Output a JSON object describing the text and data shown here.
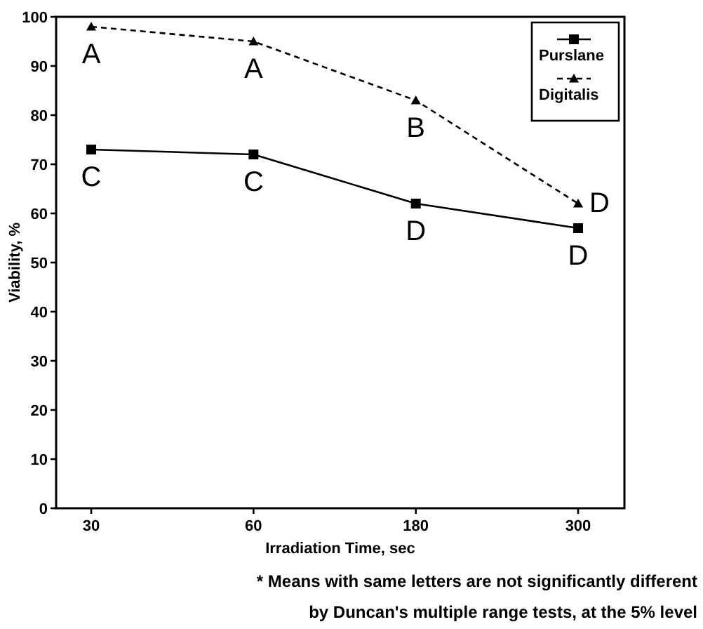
{
  "chart_data": {
    "type": "line",
    "xlabel": "Irradiation Time, sec",
    "ylabel": "Viability, %",
    "categories": [
      "30",
      "60",
      "180",
      "300"
    ],
    "series": [
      {
        "name": "Purslane",
        "color": "#000000",
        "values": [
          73,
          72,
          62,
          57
        ],
        "marker": "square",
        "line_style": "solid"
      },
      {
        "name": "Digitalis",
        "color": "#000000",
        "values": [
          98,
          95,
          83,
          62
        ],
        "marker": "triangle",
        "line_style": "dashed"
      }
    ],
    "ylim": [
      0,
      100
    ],
    "yticks": [
      0,
      10,
      20,
      30,
      40,
      50,
      60,
      70,
      80,
      90,
      100
    ],
    "grid": false,
    "legend": "top right",
    "annotations": [
      {
        "text": "A",
        "x": "30",
        "y": 98
      },
      {
        "text": "A",
        "x": "60",
        "y": 95
      },
      {
        "text": "B",
        "x": "180",
        "y": 83
      },
      {
        "text": "D",
        "x": "300",
        "y": 62
      },
      {
        "text": "C",
        "x": "30",
        "y": 73
      },
      {
        "text": "C",
        "x": "60",
        "y": 72
      },
      {
        "text": "D",
        "x": "180",
        "y": 62
      },
      {
        "text": "D",
        "x": "300",
        "y": 57
      },
      "* Means with same letters are not significantly different",
      "by Duncan's multiple range tests, at the 5% level"
    ]
  }
}
